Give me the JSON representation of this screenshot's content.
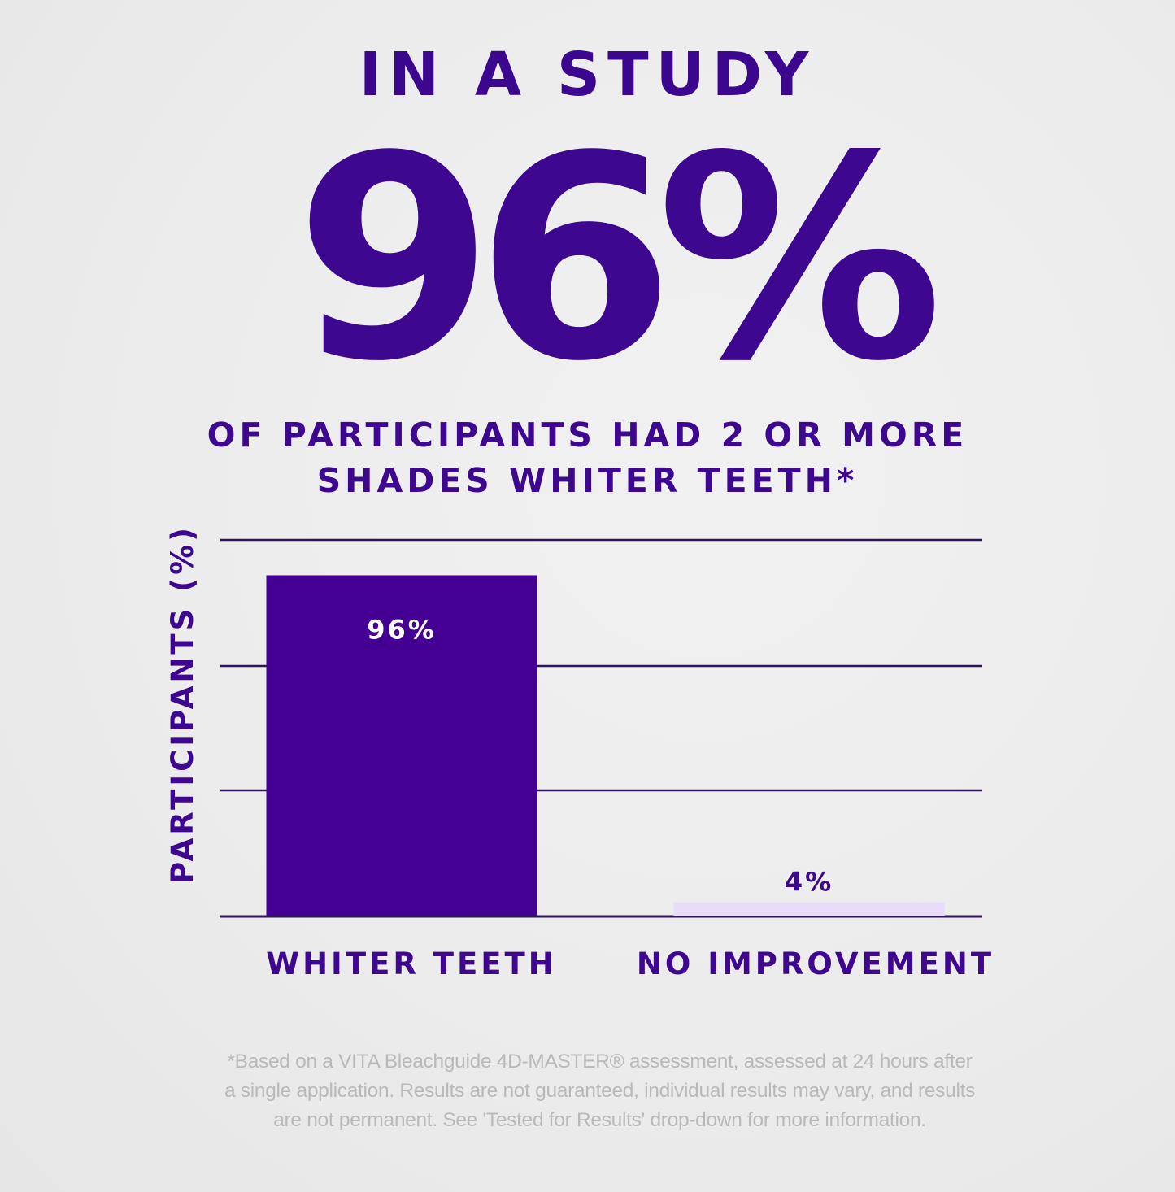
{
  "header": {
    "kicker": "IN A STUDY",
    "hero": "96%",
    "subhead_line1": "OF PARTICIPANTS HAD 2 OR MORE",
    "subhead_line2": "SHADES WHITER TEETH*"
  },
  "colors": {
    "brand_purple": "#3d078f",
    "bar_primary": "#430092",
    "bar_secondary": "#e9dcfb",
    "gridline": "#2d1558",
    "footnote": "#b9b9b9"
  },
  "chart_data": {
    "type": "bar",
    "title": "",
    "ylabel": "PARTICIPANTS (%)",
    "xlabel": "",
    "categories": [
      "WHITER TEETH",
      "NO IMPROVEMENT"
    ],
    "values": [
      96,
      4
    ],
    "data_labels": [
      "96%",
      "4%"
    ],
    "ylim": [
      0,
      100
    ],
    "grid": true,
    "legend": "none"
  },
  "footnote": {
    "text": "*Based on a VITA Bleachguide 4D-MASTER® assessment, assessed at 24 hours after a single application. Results are not guaranteed, individual results may vary, and results are not permanent. See 'Tested for Results' drop-down for more information."
  }
}
